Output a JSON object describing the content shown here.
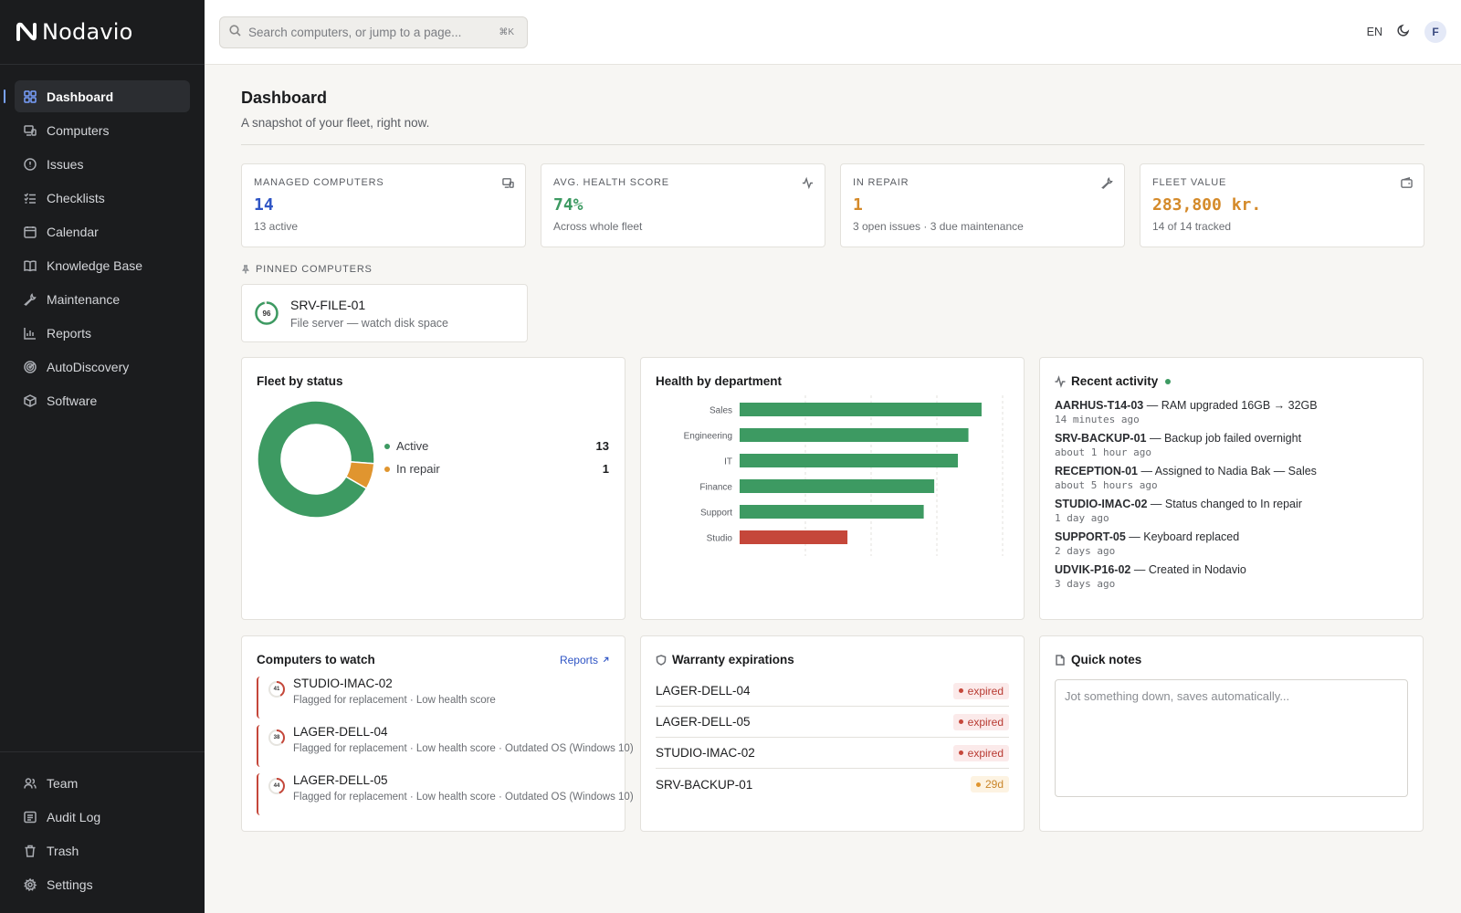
{
  "app": {
    "name": "Nodavio"
  },
  "search": {
    "placeholder": "Search computers, or jump to a page...",
    "shortcut": "⌘K"
  },
  "topbar": {
    "language": "EN",
    "avatar_initial": "F"
  },
  "sidebar": {
    "items": [
      {
        "label": "Dashboard",
        "icon": "grid-icon",
        "active": true
      },
      {
        "label": "Computers",
        "icon": "computer-icon"
      },
      {
        "label": "Issues",
        "icon": "alert-circle-icon"
      },
      {
        "label": "Checklists",
        "icon": "checklist-icon"
      },
      {
        "label": "Calendar",
        "icon": "calendar-icon"
      },
      {
        "label": "Knowledge Base",
        "icon": "book-icon"
      },
      {
        "label": "Maintenance",
        "icon": "wrench-icon"
      },
      {
        "label": "Reports",
        "icon": "bar-chart-icon"
      },
      {
        "label": "AutoDiscovery",
        "icon": "radar-icon"
      },
      {
        "label": "Software",
        "icon": "package-icon"
      }
    ],
    "bottom_items": [
      {
        "label": "Team",
        "icon": "users-icon"
      },
      {
        "label": "Audit Log",
        "icon": "log-icon"
      },
      {
        "label": "Trash",
        "icon": "trash-icon"
      },
      {
        "label": "Settings",
        "icon": "gear-icon"
      }
    ]
  },
  "page": {
    "title": "Dashboard",
    "subtitle": "A snapshot of your fleet, right now."
  },
  "stats": [
    {
      "label": "MANAGED COMPUTERS",
      "value": "14",
      "sub": "13 active",
      "color": "#2f55c5",
      "icon": "computer-icon"
    },
    {
      "label": "AVG. HEALTH SCORE",
      "value": "74%",
      "sub": "Across whole fleet",
      "color": "#3d9a62",
      "icon": "activity-icon"
    },
    {
      "label": "IN REPAIR",
      "value": "1",
      "sub": "3 open issues · 3 due maintenance",
      "color": "#d48a2a",
      "icon": "wrench-icon"
    },
    {
      "label": "FLEET VALUE",
      "value": "283,800 kr.",
      "sub": "14 of 14 tracked",
      "color": "#d48a2a",
      "icon": "wallet-icon"
    }
  ],
  "pinned": {
    "label": "PINNED COMPUTERS",
    "items": [
      {
        "score": "96",
        "name": "SRV-FILE-01",
        "note": "File server — watch disk space"
      }
    ]
  },
  "fleet_status": {
    "title": "Fleet by status",
    "legend": [
      {
        "label": "Active",
        "count": "13",
        "color": "#3d9a62"
      },
      {
        "label": "In repair",
        "count": "1",
        "color": "#e0952f"
      }
    ]
  },
  "chart_data": {
    "type": "bar",
    "orientation": "horizontal",
    "title": "Health by department",
    "categories": [
      "Sales",
      "Engineering",
      "IT",
      "Finance",
      "Support",
      "Studio"
    ],
    "values": [
      92,
      87,
      83,
      74,
      70,
      41
    ],
    "colors": [
      "#3d9a62",
      "#3d9a62",
      "#3d9a62",
      "#3d9a62",
      "#3d9a62",
      "#c5473a"
    ],
    "xlim": [
      0,
      100
    ],
    "grid": true
  },
  "activity": {
    "title": "Recent activity",
    "items": [
      {
        "name": "AARHUS-T14-03",
        "text": " — RAM upgraded 16GB → 32GB",
        "time": "14 minutes ago"
      },
      {
        "name": "SRV-BACKUP-01",
        "text": " — Backup job failed overnight",
        "time": "about 1 hour ago"
      },
      {
        "name": "RECEPTION-01",
        "text": " — Assigned to Nadia Bak — Sales",
        "time": "about 5 hours ago"
      },
      {
        "name": "STUDIO-IMAC-02",
        "text": " — Status changed to In repair",
        "time": "1 day ago"
      },
      {
        "name": "SUPPORT-05",
        "text": " — Keyboard replaced",
        "time": "2 days ago"
      },
      {
        "name": "UDVIK-P16-02",
        "text": " — Created in Nodavio",
        "time": "3 days ago"
      }
    ]
  },
  "watch": {
    "title": "Computers to watch",
    "link": "Reports",
    "items": [
      {
        "score": "41",
        "name": "STUDIO-IMAC-02",
        "flags": "Flagged for replacement · Low health score"
      },
      {
        "score": "38",
        "name": "LAGER-DELL-04",
        "flags": "Flagged for replacement · Low health score · Outdated OS (Windows 10)"
      },
      {
        "score": "44",
        "name": "LAGER-DELL-05",
        "flags": "Flagged for replacement · Low health score · Outdated OS (Windows 10)"
      }
    ]
  },
  "warranty": {
    "title": "Warranty expirations",
    "items": [
      {
        "name": "LAGER-DELL-04",
        "badge": "expired",
        "kind": "expired"
      },
      {
        "name": "LAGER-DELL-05",
        "badge": "expired",
        "kind": "expired"
      },
      {
        "name": "STUDIO-IMAC-02",
        "badge": "expired",
        "kind": "expired"
      },
      {
        "name": "SRV-BACKUP-01",
        "badge": "29d",
        "kind": "soon"
      }
    ]
  },
  "notes": {
    "title": "Quick notes",
    "placeholder": "Jot something down, saves automatically..."
  }
}
